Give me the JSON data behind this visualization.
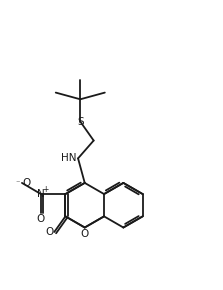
{
  "bg_color": "#ffffff",
  "line_color": "#1a1a1a",
  "line_width": 1.3,
  "figsize": [
    2.23,
    2.9
  ],
  "dpi": 100,
  "xlim": [
    0.0,
    10.0
  ],
  "ylim": [
    0.0,
    13.0
  ]
}
